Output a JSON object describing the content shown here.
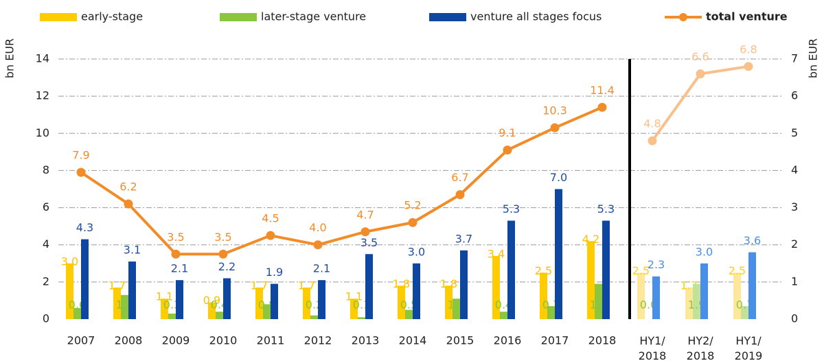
{
  "chart_data": {
    "type": "bar",
    "categories": [
      "2007",
      "2008",
      "2009",
      "2010",
      "2011",
      "2012",
      "2013",
      "2014",
      "2015",
      "2016",
      "2017",
      "2018",
      "HY1/ 2018",
      "HY2/ 2018",
      "HY1/ 2019"
    ],
    "y_label": "bn EUR",
    "y2_label": "bn EUR",
    "ylim": [
      0,
      14
    ],
    "yticks": [
      0,
      2,
      4,
      6,
      8,
      10,
      12,
      14
    ],
    "y2lim": [
      0,
      7
    ],
    "y2ticks": [
      0,
      1,
      2,
      3,
      4,
      5,
      6,
      7
    ],
    "grid": true,
    "legend": "top",
    "series": [
      {
        "name": "early-stage",
        "type": "bar",
        "color": "#ffcc00",
        "values": [
          3.0,
          1.7,
          1.1,
          0.9,
          1.7,
          1.7,
          1.1,
          1.8,
          1.8,
          3.4,
          2.5,
          4.2,
          null,
          null,
          null
        ],
        "value_labels": [
          "3.0",
          "1.7",
          "1.1",
          "0.9",
          "1.7",
          "1.7",
          "1.1",
          "1.8",
          "1.8",
          "3.4",
          "2.5",
          "4.2",
          null,
          null,
          null
        ]
      },
      {
        "name": "later-stage venture",
        "type": "bar",
        "color": "#8cc63f",
        "values": [
          0.6,
          1.3,
          0.3,
          0.4,
          0.8,
          0.2,
          0.1,
          0.5,
          1.1,
          0.4,
          0.7,
          1.9,
          null,
          null,
          null
        ],
        "value_labels": [
          "0.6",
          "1.3",
          "0.3",
          "0.4",
          "0.8",
          "0.2",
          "0.1",
          "0.5",
          "1.1",
          "0.4",
          "0.7",
          "1.9",
          null,
          null,
          null
        ]
      },
      {
        "name": "venture all stages focus",
        "type": "bar",
        "color": "#0d47a1",
        "values": [
          4.3,
          3.1,
          2.1,
          2.2,
          1.9,
          2.1,
          3.5,
          3.0,
          3.7,
          5.3,
          7.0,
          5.3,
          null,
          null,
          null
        ],
        "value_labels": [
          "4.3",
          "3.1",
          "2.1",
          "2.2",
          "1.9",
          "2.1",
          "3.5",
          "3.0",
          "3.7",
          "5.3",
          "7.0",
          "5.3",
          null,
          null,
          null
        ]
      },
      {
        "name": "total venture",
        "type": "line",
        "color": "#f28c28",
        "values": [
          7.9,
          6.2,
          3.5,
          3.5,
          4.5,
          4.0,
          4.7,
          5.2,
          6.7,
          9.1,
          10.3,
          11.4,
          null,
          null,
          null
        ],
        "value_labels": [
          "7.9",
          "6.2",
          "3.5",
          "3.5",
          "4.5",
          "4.0",
          "4.7",
          "5.2",
          "6.7",
          "9.1",
          "10.3",
          "11.4",
          null,
          null,
          null
        ]
      },
      {
        "type": "bar",
        "color": "#fde89a",
        "values": [
          null,
          null,
          null,
          null,
          null,
          null,
          null,
          null,
          null,
          null,
          null,
          null,
          2.5,
          1.7,
          2.5
        ],
        "value_labels": [
          null,
          null,
          null,
          null,
          null,
          null,
          null,
          null,
          null,
          null,
          null,
          null,
          "2.5",
          "1.7",
          "2.5"
        ]
      },
      {
        "type": "bar",
        "color": "#c2e29a",
        "values": [
          null,
          null,
          null,
          null,
          null,
          null,
          null,
          null,
          null,
          null,
          null,
          null,
          0.0,
          1.9,
          0.7
        ],
        "value_labels": [
          null,
          null,
          null,
          null,
          null,
          null,
          null,
          null,
          null,
          null,
          null,
          null,
          "0.0",
          "1.9",
          "0.7"
        ]
      },
      {
        "type": "bar",
        "color": "#4a8fe7",
        "values": [
          null,
          null,
          null,
          null,
          null,
          null,
          null,
          null,
          null,
          null,
          null,
          null,
          2.3,
          3.0,
          3.6
        ],
        "value_labels": [
          null,
          null,
          null,
          null,
          null,
          null,
          null,
          null,
          null,
          null,
          null,
          null,
          "2.3",
          "3.0",
          "3.6"
        ]
      },
      {
        "type": "line",
        "axis": "y2",
        "color": "#f9c08c",
        "values": [
          null,
          null,
          null,
          null,
          null,
          null,
          null,
          null,
          null,
          null,
          null,
          null,
          4.8,
          6.6,
          6.8
        ],
        "value_labels": [
          null,
          null,
          null,
          null,
          null,
          null,
          null,
          null,
          null,
          null,
          null,
          null,
          "4.8",
          "6.6",
          "6.8"
        ]
      }
    ]
  }
}
